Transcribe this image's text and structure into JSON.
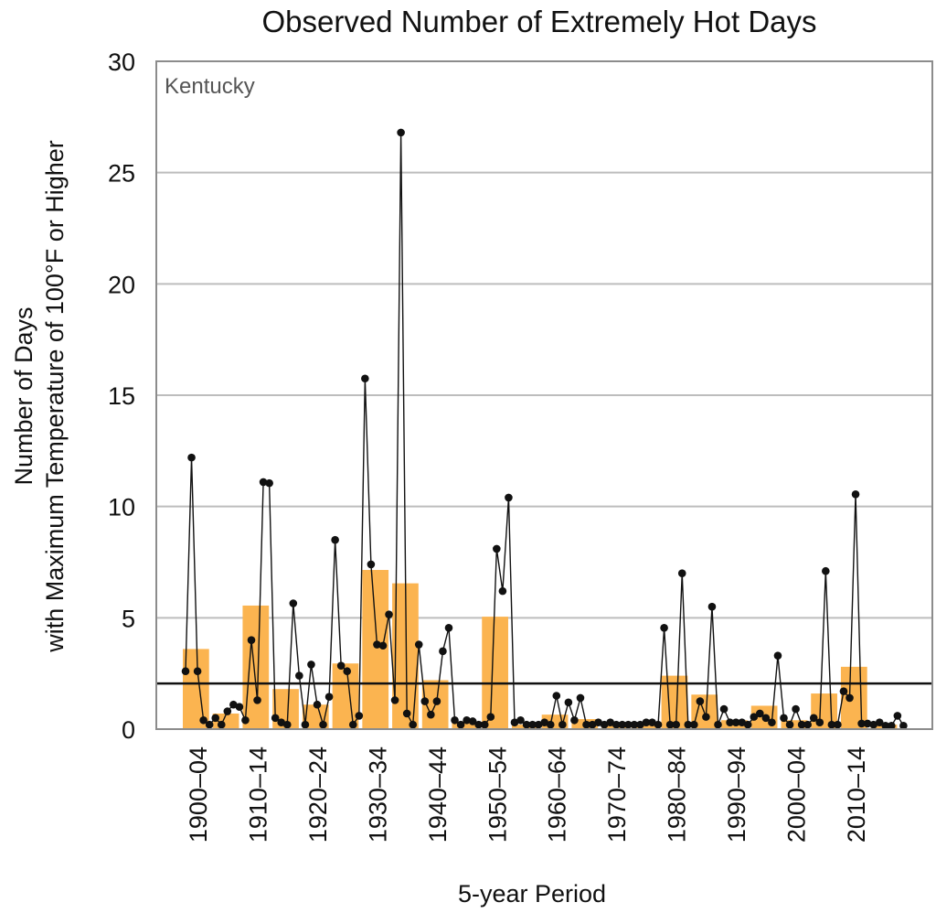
{
  "chart_data": {
    "type": "bar",
    "title": "Observed Number of Extremely Hot Days",
    "ylabel_line1": "Number of Days",
    "ylabel_line2": "with Maximum Temperature of 100°F or Higher",
    "xlabel": "5-year Period",
    "region": "Kentucky",
    "ylim": [
      0,
      30
    ],
    "yticks": [
      0,
      5,
      10,
      15,
      20,
      25,
      30
    ],
    "grid": true,
    "x_tick_labels": [
      "1900–04",
      "1910–14",
      "1920–24",
      "1930–34",
      "1940–44",
      "1950–54",
      "1960–64",
      "1970–74",
      "1980–84",
      "1990–94",
      "2000–04",
      "2010–14"
    ],
    "bar_color": "#FBB450",
    "line_color": "#111111",
    "long_term_average": 2.05,
    "bars": [
      {
        "period": "1900–04",
        "value": 3.6
      },
      {
        "period": "1905–09",
        "value": 0.7
      },
      {
        "period": "1910–14",
        "value": 5.55
      },
      {
        "period": "1915–19",
        "value": 1.8
      },
      {
        "period": "1920–24",
        "value": 1.1
      },
      {
        "period": "1925–29",
        "value": 2.95
      },
      {
        "period": "1930–34",
        "value": 7.15
      },
      {
        "period": "1935–39",
        "value": 6.55
      },
      {
        "period": "1940–44",
        "value": 2.2
      },
      {
        "period": "1945–49",
        "value": 0.35
      },
      {
        "period": "1950–54",
        "value": 5.05
      },
      {
        "period": "1955–59",
        "value": 0.2
      },
      {
        "period": "1960–64",
        "value": 0.65
      },
      {
        "period": "1965–69",
        "value": 0.45
      },
      {
        "period": "1970–74",
        "value": 0.2
      },
      {
        "period": "1975–79",
        "value": 0.2
      },
      {
        "period": "1980–84",
        "value": 2.4
      },
      {
        "period": "1985–89",
        "value": 1.55
      },
      {
        "period": "1990–94",
        "value": 0.4
      },
      {
        "period": "1995–99",
        "value": 1.05
      },
      {
        "period": "2000–04",
        "value": 0.4
      },
      {
        "period": "2005–09",
        "value": 1.6
      },
      {
        "period": "2010–14",
        "value": 2.8
      },
      {
        "period": "2015–20",
        "value": 0.2
      }
    ],
    "annual": {
      "start_year": 1900,
      "values": [
        2.6,
        12.2,
        2.6,
        0.4,
        0.2,
        0.5,
        0.2,
        0.8,
        1.1,
        1.0,
        0.4,
        4.0,
        1.3,
        11.1,
        11.05,
        0.5,
        0.3,
        0.2,
        5.65,
        2.4,
        0.2,
        2.9,
        1.1,
        0.2,
        1.45,
        8.5,
        2.85,
        2.6,
        0.2,
        0.6,
        15.75,
        7.4,
        3.8,
        3.75,
        5.15,
        1.3,
        26.8,
        0.7,
        0.2,
        3.8,
        1.25,
        0.65,
        1.25,
        3.5,
        4.55,
        0.4,
        0.2,
        0.4,
        0.35,
        0.2,
        0.2,
        0.55,
        8.1,
        6.2,
        10.4,
        0.3,
        0.4,
        0.2,
        0.2,
        0.2,
        0.3,
        0.2,
        1.5,
        0.2,
        1.2,
        0.4,
        1.4,
        0.2,
        0.2,
        0.3,
        0.2,
        0.3,
        0.2,
        0.2,
        0.2,
        0.2,
        0.2,
        0.3,
        0.3,
        0.2,
        4.55,
        0.2,
        0.2,
        7.0,
        0.2,
        0.2,
        1.25,
        0.55,
        5.5,
        0.2,
        0.9,
        0.3,
        0.3,
        0.3,
        0.2,
        0.55,
        0.7,
        0.5,
        0.3,
        3.3,
        0.5,
        0.2,
        0.9,
        0.2,
        0.2,
        0.5,
        0.3,
        7.1,
        0.2,
        0.2,
        1.7,
        1.4,
        10.55,
        0.25,
        0.25,
        0.2,
        0.3,
        0.15,
        0.15,
        0.6,
        0.15
      ]
    }
  }
}
